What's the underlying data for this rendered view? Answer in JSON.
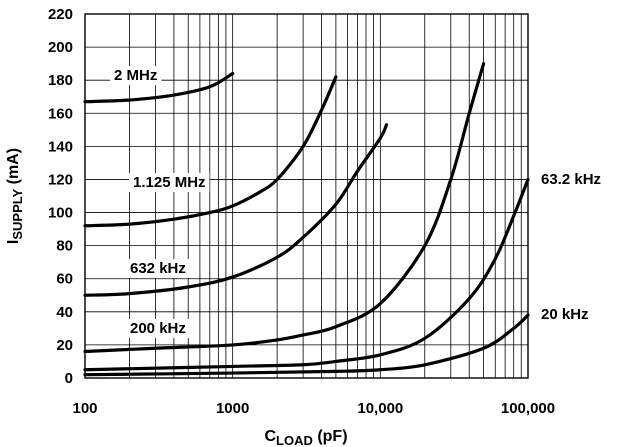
{
  "chart_data": {
    "type": "line",
    "x_scale": "log",
    "xlim": [
      100,
      100000
    ],
    "ylim": [
      0,
      220
    ],
    "grid": true,
    "x_ticks": [
      100,
      1000,
      10000,
      100000
    ],
    "x_tick_labels": [
      "100",
      "1000",
      "10,000",
      "100,000"
    ],
    "y_ticks": [
      0,
      20,
      40,
      60,
      80,
      100,
      120,
      140,
      160,
      180,
      200,
      220
    ],
    "y_tick_labels": [
      "0",
      "20",
      "40",
      "60",
      "80",
      "100",
      "120",
      "140",
      "160",
      "180",
      "200",
      "220"
    ],
    "xlabel": {
      "main": "C",
      "sub": "LOAD",
      "unit": " (pF)"
    },
    "ylabel": {
      "main": "I",
      "sub": "SUPPLY",
      "unit": " (mA)"
    },
    "series": [
      {
        "name": "2 MHz",
        "x": [
          100,
          200,
          400,
          700,
          1000
        ],
        "y": [
          167,
          168,
          171,
          176,
          184
        ]
      },
      {
        "name": "1.125 MHz",
        "x": [
          100,
          200,
          400,
          700,
          1000,
          1500,
          2000,
          3000,
          4000,
          5000
        ],
        "y": [
          92,
          93,
          96,
          100,
          104,
          112,
          120,
          140,
          162,
          182
        ]
      },
      {
        "name": "632 kHz",
        "x": [
          100,
          200,
          500,
          1000,
          2000,
          3000,
          5000,
          7000,
          10000,
          11000
        ],
        "y": [
          50,
          51,
          55,
          61,
          73,
          85,
          105,
          125,
          145,
          153
        ]
      },
      {
        "name": "200 kHz",
        "x": [
          100,
          300,
          1000,
          2000,
          3000,
          5000,
          10000,
          20000,
          30000,
          40000,
          50000
        ],
        "y": [
          16,
          18,
          20,
          23,
          26,
          31,
          45,
          80,
          120,
          160,
          190
        ]
      },
      {
        "name": "63.2 kHz",
        "x": [
          100,
          1000,
          3000,
          5000,
          10000,
          20000,
          40000,
          60000,
          80000,
          100000
        ],
        "y": [
          5,
          7,
          8,
          10,
          14,
          24,
          48,
          72,
          98,
          120
        ]
      },
      {
        "name": "20 kHz",
        "x": [
          100,
          1000,
          5000,
          10000,
          20000,
          50000,
          80000,
          100000
        ],
        "y": [
          2,
          3,
          4,
          5,
          8,
          18,
          30,
          38
        ]
      }
    ]
  }
}
